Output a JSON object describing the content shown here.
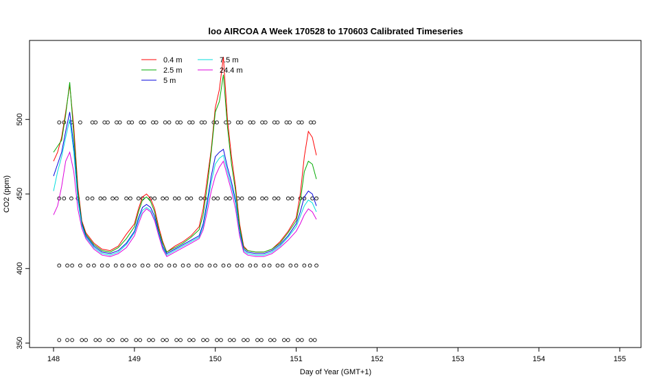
{
  "chart_data": {
    "type": "line",
    "title": "loo AIRCOA A  Week 170528 to 170603  Calibrated Timeseries",
    "xlabel": "Day of Year (GMT+1)",
    "ylabel": "CO2 (ppm)",
    "xlim": [
      148,
      155
    ],
    "ylim": [
      347,
      553
    ],
    "xticks": [
      "148",
      "149",
      "150",
      "151",
      "152",
      "153",
      "154",
      "155"
    ],
    "yticks": [
      "350",
      "400",
      "450",
      "500"
    ],
    "legend_position": "top-left",
    "series": [
      {
        "name": "0.4 m",
        "color": "#ff0000",
        "x": [
          148.0,
          148.05,
          148.1,
          148.15,
          148.2,
          148.25,
          148.3,
          148.35,
          148.4,
          148.5,
          148.6,
          148.7,
          148.8,
          148.9,
          149.0,
          149.05,
          149.1,
          149.15,
          149.2,
          149.25,
          149.3,
          149.35,
          149.4,
          149.5,
          149.6,
          149.7,
          149.8,
          149.85,
          149.9,
          149.95,
          150.0,
          150.05,
          150.1,
          150.15,
          150.2,
          150.25,
          150.3,
          150.35,
          150.4,
          150.5,
          150.6,
          150.7,
          150.8,
          150.9,
          151.0,
          151.05,
          151.1,
          151.15,
          151.2,
          151.25
        ],
        "y": [
          472,
          478,
          488,
          505,
          523,
          495,
          455,
          432,
          424,
          417,
          413,
          412,
          415,
          423,
          430,
          440,
          448,
          450,
          447,
          440,
          428,
          418,
          411,
          415,
          418,
          422,
          428,
          440,
          460,
          480,
          508,
          520,
          542,
          500,
          475,
          455,
          430,
          415,
          412,
          411,
          411,
          413,
          418,
          425,
          434,
          450,
          475,
          492,
          488,
          476
        ]
      },
      {
        "name": "2.5 m",
        "color": "#00aa00",
        "x": [
          148.0,
          148.05,
          148.1,
          148.15,
          148.2,
          148.25,
          148.3,
          148.35,
          148.4,
          148.5,
          148.6,
          148.7,
          148.8,
          148.9,
          149.0,
          149.05,
          149.1,
          149.15,
          149.2,
          149.25,
          149.3,
          149.35,
          149.4,
          149.5,
          149.6,
          149.7,
          149.8,
          149.85,
          149.9,
          149.95,
          150.0,
          150.05,
          150.1,
          150.15,
          150.2,
          150.25,
          150.3,
          150.35,
          150.4,
          150.5,
          150.6,
          150.7,
          150.8,
          150.9,
          151.0,
          151.05,
          151.1,
          151.15,
          151.2,
          151.25
        ],
        "y": [
          478,
          482,
          486,
          503,
          525,
          490,
          452,
          431,
          423,
          416,
          412,
          411,
          414,
          420,
          428,
          438,
          446,
          448,
          445,
          438,
          426,
          417,
          411,
          414,
          417,
          421,
          426,
          436,
          455,
          478,
          505,
          512,
          530,
          495,
          470,
          452,
          428,
          414,
          412,
          411,
          411,
          413,
          417,
          424,
          432,
          445,
          465,
          472,
          470,
          460
        ]
      },
      {
        "name": "5 m",
        "color": "#0000dd",
        "x": [
          148.0,
          148.05,
          148.1,
          148.15,
          148.2,
          148.25,
          148.3,
          148.35,
          148.4,
          148.5,
          148.6,
          148.7,
          148.8,
          148.9,
          149.0,
          149.05,
          149.1,
          149.15,
          149.2,
          149.25,
          149.3,
          149.35,
          149.4,
          149.5,
          149.6,
          149.7,
          149.8,
          149.85,
          149.9,
          149.95,
          150.0,
          150.05,
          150.1,
          150.15,
          150.2,
          150.25,
          150.3,
          150.35,
          150.4,
          150.5,
          150.6,
          150.7,
          150.8,
          150.9,
          151.0,
          151.05,
          151.1,
          151.15,
          151.2,
          151.25
        ],
        "y": [
          462,
          470,
          478,
          492,
          505,
          482,
          448,
          430,
          422,
          415,
          411,
          410,
          412,
          417,
          425,
          434,
          441,
          443,
          441,
          435,
          424,
          415,
          410,
          413,
          416,
          419,
          422,
          430,
          445,
          462,
          475,
          478,
          480,
          468,
          458,
          446,
          425,
          413,
          411,
          410,
          410,
          412,
          416,
          422,
          430,
          438,
          448,
          452,
          450,
          442
        ]
      },
      {
        "name": "7.5 m",
        "color": "#00dddd",
        "x": [
          148.0,
          148.05,
          148.1,
          148.15,
          148.2,
          148.25,
          148.3,
          148.35,
          148.4,
          148.5,
          148.6,
          148.7,
          148.8,
          148.9,
          149.0,
          149.05,
          149.1,
          149.15,
          149.2,
          149.25,
          149.3,
          149.35,
          149.4,
          149.5,
          149.6,
          149.7,
          149.8,
          149.85,
          149.9,
          149.95,
          150.0,
          150.05,
          150.1,
          150.15,
          150.2,
          150.25,
          150.3,
          150.35,
          150.4,
          150.5,
          150.6,
          150.7,
          150.8,
          150.9,
          151.0,
          151.05,
          151.1,
          151.15,
          151.2,
          151.25
        ],
        "y": [
          452,
          465,
          475,
          488,
          500,
          478,
          446,
          429,
          421,
          414,
          410,
          409,
          411,
          416,
          424,
          432,
          439,
          441,
          439,
          433,
          423,
          414,
          409,
          412,
          415,
          418,
          421,
          428,
          442,
          458,
          470,
          474,
          476,
          465,
          455,
          444,
          424,
          412,
          410,
          409,
          409,
          411,
          415,
          421,
          428,
          435,
          442,
          446,
          444,
          438
        ]
      },
      {
        "name": "24.4 m",
        "color": "#dd00dd",
        "x": [
          148.0,
          148.05,
          148.1,
          148.15,
          148.2,
          148.25,
          148.3,
          148.35,
          148.4,
          148.5,
          148.6,
          148.7,
          148.8,
          148.9,
          149.0,
          149.05,
          149.1,
          149.15,
          149.2,
          149.25,
          149.3,
          149.35,
          149.4,
          149.5,
          149.6,
          149.7,
          149.8,
          149.85,
          149.9,
          149.95,
          150.0,
          150.05,
          150.1,
          150.15,
          150.2,
          150.25,
          150.3,
          150.35,
          150.4,
          150.5,
          150.6,
          150.7,
          150.8,
          150.9,
          151.0,
          151.05,
          151.1,
          151.15,
          151.2,
          151.25
        ],
        "y": [
          436,
          442,
          455,
          472,
          478,
          465,
          440,
          427,
          420,
          413,
          409,
          408,
          410,
          414,
          422,
          430,
          437,
          440,
          438,
          432,
          422,
          413,
          408,
          411,
          414,
          417,
          420,
          426,
          438,
          452,
          462,
          468,
          472,
          462,
          452,
          440,
          422,
          411,
          409,
          408,
          408,
          410,
          414,
          419,
          425,
          430,
          436,
          440,
          438,
          433
        ]
      }
    ],
    "calibration_points": [
      {
        "level": 498,
        "x": [
          148.07,
          148.13,
          148.22,
          148.33,
          148.48,
          148.52,
          148.63,
          148.67,
          148.78,
          148.82,
          148.93,
          148.97,
          149.08,
          149.12,
          149.23,
          149.27,
          149.38,
          149.43,
          149.53,
          149.57,
          149.68,
          149.72,
          149.83,
          149.87,
          149.98,
          150.02,
          150.13,
          150.17,
          150.28,
          150.32,
          150.43,
          150.47,
          150.58,
          150.62,
          150.73,
          150.77,
          150.88,
          150.92,
          151.03,
          151.07,
          151.18,
          151.22
        ]
      },
      {
        "level": 447,
        "x": [
          148.07,
          148.13,
          148.22,
          148.3,
          148.42,
          148.48,
          148.58,
          148.63,
          148.73,
          148.78,
          148.9,
          148.95,
          149.05,
          149.1,
          149.2,
          149.25,
          149.35,
          149.4,
          149.5,
          149.55,
          149.65,
          149.7,
          149.82,
          149.87,
          149.98,
          150.03,
          150.13,
          150.18,
          150.28,
          150.33,
          150.43,
          150.48,
          150.58,
          150.63,
          150.73,
          150.78,
          150.9,
          150.95,
          151.05,
          151.1,
          151.2,
          151.25
        ]
      },
      {
        "level": 402,
        "x": [
          148.07,
          148.17,
          148.23,
          148.33,
          148.43,
          148.5,
          148.6,
          148.67,
          148.77,
          148.85,
          148.93,
          149.0,
          149.1,
          149.17,
          149.27,
          149.33,
          149.43,
          149.5,
          149.6,
          149.67,
          149.77,
          149.83,
          149.93,
          150.0,
          150.1,
          150.17,
          150.27,
          150.33,
          150.43,
          150.5,
          150.6,
          150.67,
          150.77,
          150.83,
          150.93,
          151.0,
          151.1,
          151.17,
          151.25
        ]
      },
      {
        "level": 352,
        "x": [
          148.07,
          148.17,
          148.23,
          148.35,
          148.4,
          148.52,
          148.57,
          148.68,
          148.73,
          148.85,
          148.9,
          149.02,
          149.07,
          149.18,
          149.23,
          149.35,
          149.4,
          149.52,
          149.57,
          149.68,
          149.73,
          149.85,
          149.9,
          150.02,
          150.07,
          150.18,
          150.23,
          150.35,
          150.4,
          150.52,
          150.57,
          150.68,
          150.73,
          150.85,
          150.9,
          151.02,
          151.07,
          151.18,
          151.23
        ]
      }
    ]
  }
}
